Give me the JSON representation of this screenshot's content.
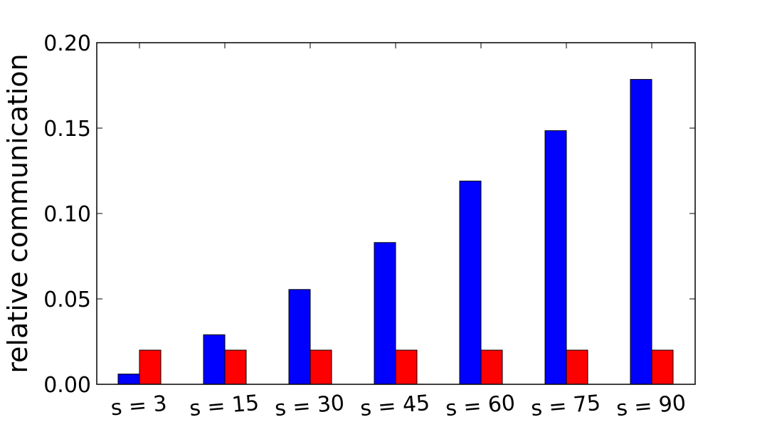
{
  "chart_data": {
    "type": "bar",
    "title": "",
    "xlabel": "",
    "ylabel": "relative communication",
    "categories": [
      "s = 3",
      "s = 15",
      "s = 30",
      "s = 45",
      "s = 60",
      "s = 75",
      "s = 90"
    ],
    "series": [
      {
        "color": "#0000ff",
        "values": [
          0.006,
          0.029,
          0.0555,
          0.083,
          0.119,
          0.1485,
          0.1785
        ]
      },
      {
        "color": "#ff0000",
        "values": [
          0.02,
          0.02,
          0.02,
          0.02,
          0.02,
          0.02,
          0.02
        ]
      }
    ],
    "ylim": [
      0,
      0.2
    ],
    "yticks": [
      "0.00",
      "0.05",
      "0.10",
      "0.15",
      "0.20"
    ],
    "grid": false,
    "legend": "none"
  }
}
